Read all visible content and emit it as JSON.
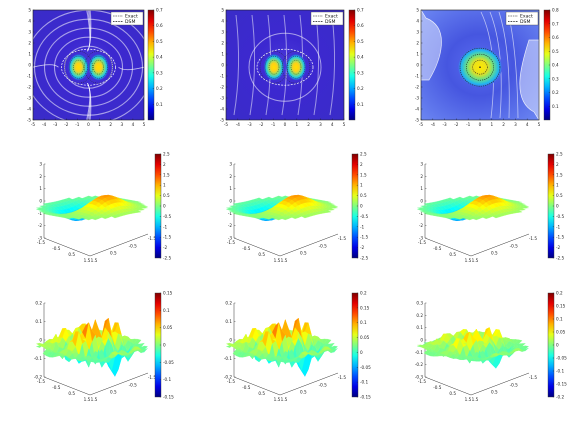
{
  "colors": {
    "colormap": "jet",
    "background": "#ffffff",
    "frame": "#1f1f1f",
    "contour_exact": "#ffffff",
    "contour_dsm": "#222222"
  },
  "chart_data": [
    {
      "panel": "top-left",
      "type": "heatmap",
      "x_ticks": [
        "-5",
        "-4",
        "-3",
        "-2",
        "-1",
        "0",
        "1",
        "2",
        "3",
        "4",
        "5"
      ],
      "y_ticks": [
        "5",
        "4",
        "3",
        "2",
        "1",
        "0",
        "-1",
        "-2",
        "-3",
        "-4",
        "-5"
      ],
      "xlim": [
        -5,
        5
      ],
      "ylim": [
        -5,
        5
      ],
      "colorbar": {
        "range": [
          0,
          0.7
        ],
        "ticks": [
          "0.7",
          "0.6",
          "0.5",
          "0.4",
          "0.3",
          "0.2",
          "0.1"
        ]
      },
      "legend": {
        "placement": "top-right",
        "entries": [
          "Exact",
          "DSM"
        ]
      },
      "series": [
        {
          "name": "Exact",
          "style": "dashed-white"
        },
        {
          "name": "DSM",
          "style": "dotted-black"
        }
      ]
    },
    {
      "panel": "top-middle",
      "type": "heatmap",
      "x_ticks": [
        "-5",
        "-4",
        "-3",
        "-2",
        "-1",
        "0",
        "1",
        "2",
        "3",
        "4",
        "5"
      ],
      "y_ticks": [
        "5",
        "4",
        "3",
        "2",
        "1",
        "0",
        "-1",
        "-2",
        "-3",
        "-4",
        "-5"
      ],
      "xlim": [
        -5,
        5
      ],
      "ylim": [
        -5,
        5
      ],
      "colorbar": {
        "range": [
          0,
          0.7
        ],
        "ticks": [
          "0.7",
          "0.6",
          "0.5",
          "0.4",
          "0.3",
          "0.2",
          "0.1"
        ]
      },
      "legend": {
        "placement": "top-right",
        "entries": [
          "Exact",
          "DSM"
        ]
      },
      "series": [
        {
          "name": "Exact",
          "style": "dashed-white"
        },
        {
          "name": "DSM",
          "style": "dotted-black"
        }
      ]
    },
    {
      "panel": "top-right",
      "type": "heatmap",
      "x_ticks": [
        "-5",
        "-4",
        "-3",
        "-2",
        "-1",
        "0",
        "1",
        "2",
        "3",
        "4",
        "5"
      ],
      "y_ticks": [
        "5",
        "4",
        "3",
        "2",
        "1",
        "0",
        "-1",
        "-2",
        "-3",
        "-4",
        "-5"
      ],
      "xlim": [
        -5,
        5
      ],
      "ylim": [
        -5,
        5
      ],
      "colorbar": {
        "range": [
          0,
          0.8
        ],
        "ticks": [
          "0.8",
          "0.7",
          "0.6",
          "0.5",
          "0.4",
          "0.3",
          "0.2",
          "0.1"
        ]
      },
      "legend": {
        "placement": "top-right",
        "entries": [
          "Exact",
          "DSM"
        ]
      },
      "series": [
        {
          "name": "Exact",
          "style": "dashed-white"
        },
        {
          "name": "DSM",
          "style": "dotted-black"
        }
      ]
    },
    {
      "panel": "middle-left",
      "type": "surface",
      "z_ticks": [
        "3",
        "2",
        "1",
        "0",
        "-1",
        "-2",
        "-3"
      ],
      "zlim": [
        -3,
        3
      ],
      "x_ticks": [
        "-1.5",
        "-0.5",
        "0.5",
        "1.5"
      ],
      "y_ticks": [
        "-1.5",
        "-0.5",
        "0.5",
        "1.5"
      ],
      "colorbar": {
        "range": [
          -2.5,
          2.5
        ],
        "ticks": [
          "2.5",
          "2",
          "1.5",
          "1",
          "0.5",
          "0",
          "-0.5",
          "-1",
          "-1.5",
          "-2",
          "-2.5"
        ]
      }
    },
    {
      "panel": "middle-middle",
      "type": "surface",
      "z_ticks": [
        "3",
        "2",
        "1",
        "0",
        "-1",
        "-2",
        "-3"
      ],
      "zlim": [
        -3,
        3
      ],
      "x_ticks": [
        "-1.5",
        "-0.5",
        "0.5",
        "1.5"
      ],
      "y_ticks": [
        "-1.5",
        "-0.5",
        "0.5",
        "1.5"
      ],
      "colorbar": {
        "range": [
          -2.5,
          2.5
        ],
        "ticks": [
          "2.5",
          "2",
          "1.5",
          "1",
          "0.5",
          "0",
          "-0.5",
          "-1",
          "-1.5",
          "-2",
          "-2.5"
        ]
      }
    },
    {
      "panel": "middle-right",
      "type": "surface",
      "z_ticks": [
        "3",
        "2",
        "1",
        "0",
        "-1",
        "-2",
        "-3"
      ],
      "zlim": [
        -3,
        3
      ],
      "x_ticks": [
        "-1.5",
        "-0.5",
        "0.5",
        "1.5"
      ],
      "y_ticks": [
        "-1.5",
        "-0.5",
        "0.5",
        "1.5"
      ],
      "colorbar": {
        "range": [
          -2.5,
          2.5
        ],
        "ticks": [
          "2.5",
          "2",
          "1.5",
          "1",
          "0.5",
          "0",
          "-0.5",
          "-1",
          "-1.5",
          "-2",
          "-2.5"
        ]
      }
    },
    {
      "panel": "bottom-left",
      "type": "surface",
      "z_ticks": [
        "0.2",
        "0.1",
        "0",
        "-0.1",
        "-0.2"
      ],
      "zlim": [
        -0.2,
        0.2
      ],
      "x_ticks": [
        "-1.5",
        "-0.5",
        "0.5",
        "1.5"
      ],
      "y_ticks": [
        "-1.5",
        "-0.5",
        "0.5",
        "1.5"
      ],
      "colorbar": {
        "range": [
          -0.15,
          0.15
        ],
        "ticks": [
          "0.15",
          "0.1",
          "0.05",
          "0",
          "-0.05",
          "-0.1",
          "-0.15"
        ]
      }
    },
    {
      "panel": "bottom-middle",
      "type": "surface",
      "z_ticks": [
        "0.2",
        "0.1",
        "0",
        "-0.1",
        "-0.2"
      ],
      "zlim": [
        -0.2,
        0.2
      ],
      "x_ticks": [
        "-1.5",
        "-0.5",
        "0.5",
        "1.5"
      ],
      "y_ticks": [
        "-1.5",
        "-0.5",
        "0.5",
        "1.5"
      ],
      "colorbar": {
        "range": [
          -0.15,
          0.2
        ],
        "ticks": [
          "0.2",
          "0.15",
          "0.1",
          "0.05",
          "0",
          "-0.05",
          "-0.1",
          "-0.15"
        ]
      }
    },
    {
      "panel": "bottom-right",
      "type": "surface",
      "z_ticks": [
        "0.3",
        "0.2",
        "0.1",
        "0",
        "-0.1",
        "-0.2",
        "-0.3"
      ],
      "zlim": [
        -0.3,
        0.3
      ],
      "x_ticks": [
        "-1.5",
        "-0.5",
        "0.5",
        "1.5"
      ],
      "y_ticks": [
        "-1.5",
        "-0.5",
        "0.5",
        "1.5"
      ],
      "colorbar": {
        "range": [
          -0.2,
          0.2
        ],
        "ticks": [
          "0.2",
          "0.15",
          "0.1",
          "0.05",
          "0",
          "-0.05",
          "-0.1",
          "-0.15",
          "-0.2"
        ]
      }
    }
  ]
}
